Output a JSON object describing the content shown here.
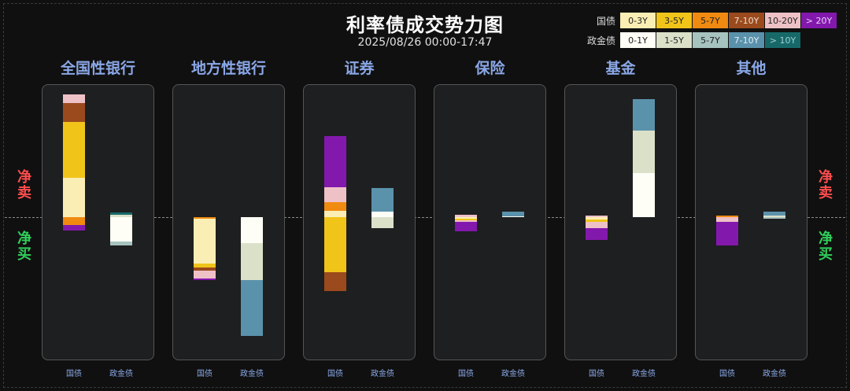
{
  "title": "利率债成交势力图",
  "subtitle": "2025/08/26 00:00-17:47",
  "side_labels": {
    "sell": "净卖",
    "buy": "净买"
  },
  "legend": {
    "guozhai": {
      "label": "国债",
      "items": [
        {
          "name": "0-3Y",
          "color": "#fbeeb4",
          "text": "#222222"
        },
        {
          "name": "3-5Y",
          "color": "#f0c419",
          "text": "#222222"
        },
        {
          "name": "5-7Y",
          "color": "#f08a10",
          "text": "#222222"
        },
        {
          "name": "7-10Y",
          "color": "#9a4a1d",
          "text": "#f0e0d0"
        },
        {
          "name": "10-20Y",
          "color": "#eec1c7",
          "text": "#222222"
        },
        {
          "name": "> 20Y",
          "color": "#8318ad",
          "text": "#e8d0f8"
        }
      ]
    },
    "zhengjinzhai": {
      "label": "政金债",
      "items": [
        {
          "name": "0-1Y",
          "color": "#fefef7",
          "text": "#222222"
        },
        {
          "name": "1-5Y",
          "color": "#dbe1c9",
          "text": "#222222"
        },
        {
          "name": "5-7Y",
          "color": "#a7c3bf",
          "text": "#222222"
        },
        {
          "name": "7-10Y",
          "color": "#5b92ab",
          "text": "#e0eef5"
        },
        {
          "name": "> 10Y",
          "color": "#176969",
          "text": "#9fd0d0"
        }
      ]
    }
  },
  "chart_data": {
    "type": "bar",
    "stacked": true,
    "diverging": true,
    "note_direction": "positive = 净卖 (above line), negative = 净买 (below line)",
    "panels": [
      {
        "name": "全国性银行",
        "x_labels": [
          "国债",
          "政金债"
        ],
        "guozhai": [
          {
            "bucket": "0-3Y",
            "value": 50
          },
          {
            "bucket": "3-5Y",
            "value": 71
          },
          {
            "bucket": "7-10Y",
            "value": 24
          },
          {
            "bucket": "10-20Y",
            "value": 11
          },
          {
            "bucket": "5-7Y",
            "value": -10
          },
          {
            "bucket": "> 20Y",
            "value": -7
          }
        ],
        "zhengjinzhai": [
          {
            "bucket": "1-5Y",
            "value": 3
          },
          {
            "bucket": "> 10Y",
            "value": 3
          },
          {
            "bucket": "0-1Y",
            "value": -31
          },
          {
            "bucket": "5-7Y",
            "value": -5
          }
        ]
      },
      {
        "name": "地方性银行",
        "x_labels": [
          "国债",
          "政金债"
        ],
        "guozhai": [
          {
            "bucket": "5-7Y",
            "value": -2
          },
          {
            "bucket": "0-3Y",
            "value": -57
          },
          {
            "bucket": "3-5Y",
            "value": -5
          },
          {
            "bucket": "7-10Y",
            "value": -4
          },
          {
            "bucket": "10-20Y",
            "value": -10
          },
          {
            "bucket": "> 20Y",
            "value": -2
          }
        ],
        "zhengjinzhai": [
          {
            "bucket": "0-1Y",
            "value": -33
          },
          {
            "bucket": "1-5Y",
            "value": -47
          },
          {
            "bucket": "7-10Y",
            "value": -71
          }
        ]
      },
      {
        "name": "证券",
        "x_labels": [
          "国债",
          "政金债"
        ],
        "guozhai": [
          {
            "bucket": "0-3Y",
            "value": 8
          },
          {
            "bucket": "5-7Y",
            "value": 11
          },
          {
            "bucket": "10-20Y",
            "value": 19
          },
          {
            "bucket": "> 20Y",
            "value": 65
          },
          {
            "bucket": "3-5Y",
            "value": -70
          },
          {
            "bucket": "7-10Y",
            "value": -24
          }
        ],
        "zhengjinzhai": [
          {
            "bucket": "0-1Y",
            "value": 7
          },
          {
            "bucket": "7-10Y",
            "value": 30
          },
          {
            "bucket": "1-5Y",
            "value": -14
          }
        ]
      },
      {
        "name": "保险",
        "x_labels": [
          "国债",
          "政金债"
        ],
        "guozhai": [
          {
            "bucket": "10-20Y",
            "value": 3
          },
          {
            "bucket": "0-3Y",
            "value": -2
          },
          {
            "bucket": "3-5Y",
            "value": -2
          },
          {
            "bucket": "10-20Y",
            "value": -2
          },
          {
            "bucket": "> 20Y",
            "value": -12
          }
        ],
        "zhengjinzhai": [
          {
            "bucket": "0-1Y",
            "value": 1
          },
          {
            "bucket": "7-10Y",
            "value": 6
          }
        ]
      },
      {
        "name": "基金",
        "x_labels": [
          "国债",
          "政金债"
        ],
        "guozhai": [
          {
            "bucket": "10-20Y",
            "value": 2
          },
          {
            "bucket": "0-3Y",
            "value": -3
          },
          {
            "bucket": "3-5Y",
            "value": -3
          },
          {
            "bucket": "10-20Y",
            "value": -8
          },
          {
            "bucket": "> 20Y",
            "value": -15
          }
        ],
        "zhengjinzhai": [
          {
            "bucket": "0-1Y",
            "value": 56
          },
          {
            "bucket": "1-5Y",
            "value": 54
          },
          {
            "bucket": "7-10Y",
            "value": 40
          }
        ]
      },
      {
        "name": "其他",
        "x_labels": [
          "国债",
          "政金债"
        ],
        "guozhai": [
          {
            "bucket": "5-7Y",
            "value": 2
          },
          {
            "bucket": "10-20Y",
            "value": -6
          },
          {
            "bucket": "> 20Y",
            "value": -30
          }
        ],
        "zhengjinzhai": [
          {
            "bucket": "1-5Y",
            "value": 2
          },
          {
            "bucket": "7-10Y",
            "value": 5
          },
          {
            "bucket": "5-7Y",
            "value": -2
          }
        ]
      }
    ]
  }
}
